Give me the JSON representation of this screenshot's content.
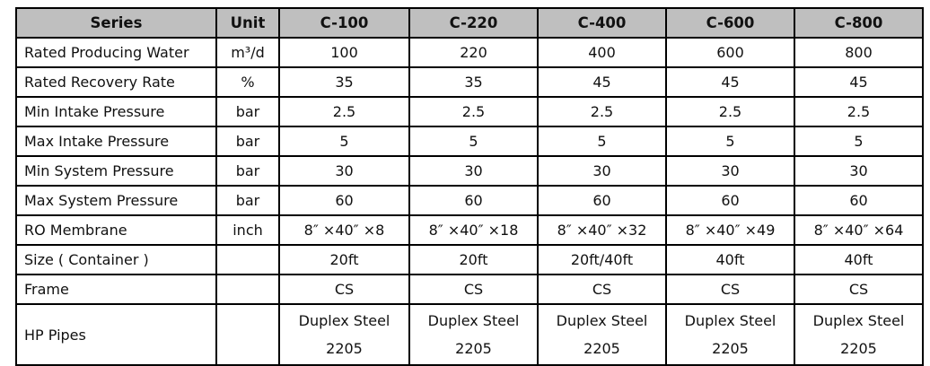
{
  "header": {
    "series": "Series",
    "unit": "Unit",
    "models": [
      "C-100",
      "C-220",
      "C-400",
      "C-600",
      "C-800"
    ]
  },
  "rows": [
    {
      "label": "Rated Producing Water",
      "unit": "m³/d",
      "values": [
        "100",
        "220",
        "400",
        "600",
        "800"
      ]
    },
    {
      "label": "Rated Recovery Rate",
      "unit": "%",
      "values": [
        "35",
        "35",
        "45",
        "45",
        "45"
      ]
    },
    {
      "label": "Min Intake Pressure",
      "unit": "bar",
      "values": [
        "2.5",
        "2.5",
        "2.5",
        "2.5",
        "2.5"
      ]
    },
    {
      "label": "Max Intake Pressure",
      "unit": "bar",
      "values": [
        "5",
        "5",
        "5",
        "5",
        "5"
      ]
    },
    {
      "label": "Min System Pressure",
      "unit": "bar",
      "values": [
        "30",
        "30",
        "30",
        "30",
        "30"
      ]
    },
    {
      "label": "Max System Pressure",
      "unit": "bar",
      "values": [
        "60",
        "60",
        "60",
        "60",
        "60"
      ]
    },
    {
      "label": "RO Membrane",
      "unit": "inch",
      "values": [
        "8″ ×40″ ×8",
        "8″ ×40″ ×18",
        "8″ ×40″ ×32",
        "8″ ×40″ ×49",
        "8″ ×40″ ×64"
      ]
    },
    {
      "label": "Size ( Container )",
      "unit": "",
      "values": [
        "20ft",
        "20ft",
        "20ft/40ft",
        "40ft",
        "40ft"
      ]
    },
    {
      "label": "Frame",
      "unit": "",
      "values": [
        "CS",
        "CS",
        "CS",
        "CS",
        "CS"
      ]
    }
  ],
  "last_row": {
    "label": "HP Pipes",
    "unit": "",
    "line1": "Duplex Steel",
    "line2": "2205"
  }
}
